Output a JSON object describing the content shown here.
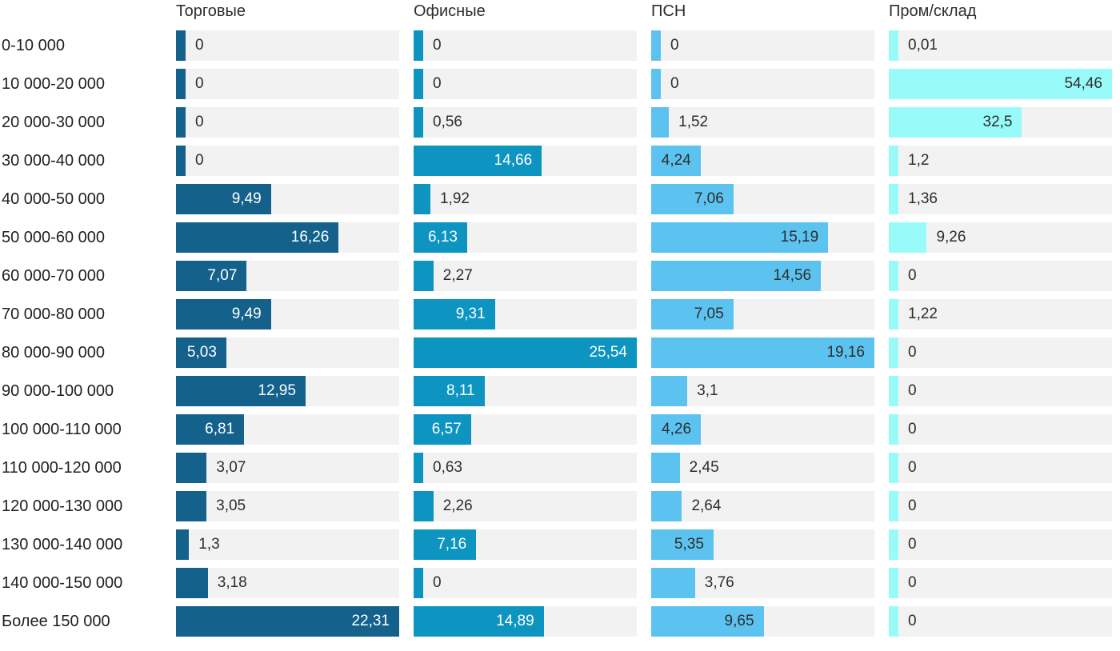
{
  "chart_data": {
    "type": "bar",
    "orientation": "horizontal",
    "layout": "small-multiples-4-columns",
    "scaling": "each-column-scaled-to-its-own-max",
    "grid": false,
    "track_color": "#f2f2f2",
    "background_color": "#ffffff",
    "outside_label_color": "#2d2d2d",
    "decimal_separator": ",",
    "categories": [
      "0-10 000",
      "10 000-20 000",
      "20 000-30 000",
      "30 000-40 000",
      "40 000-50 000",
      "50 000-60 000",
      "60 000-70 000",
      "70 000-80 000",
      "80 000-90 000",
      "90 000-100 000",
      "100 000-110 000",
      "110 000-120 000",
      "120 000-130 000",
      "130 000-140 000",
      "140 000-150 000",
      "Более 150 000"
    ],
    "series": [
      {
        "name": "Торговые",
        "color": "#14618c",
        "inside_label_color": "#ffffff",
        "values": [
          0,
          0,
          0,
          0,
          9.49,
          16.26,
          7.07,
          9.49,
          5.03,
          12.95,
          6.81,
          3.07,
          3.05,
          1.3,
          3.18,
          22.31
        ]
      },
      {
        "name": "Офисные",
        "color": "#0d94c1",
        "inside_label_color": "#ffffff",
        "values": [
          0,
          0,
          0.56,
          14.66,
          1.92,
          6.13,
          2.27,
          9.31,
          25.54,
          8.11,
          6.57,
          0.63,
          2.26,
          7.16,
          0,
          14.89
        ]
      },
      {
        "name": "ПСН",
        "color": "#5cc3f0",
        "inside_label_color": "#2d2d2d",
        "values": [
          0,
          0,
          1.52,
          4.24,
          7.06,
          15.19,
          14.56,
          7.05,
          19.16,
          3.1,
          4.26,
          2.45,
          2.64,
          5.35,
          3.76,
          9.65
        ]
      },
      {
        "name": "Пром/склад",
        "color": "#99fafa",
        "inside_label_color": "#2d2d2d",
        "values": [
          0.01,
          54.46,
          32.5,
          1.2,
          1.36,
          9.26,
          0,
          1.22,
          0,
          0,
          0,
          0,
          0,
          0,
          0,
          0
        ]
      }
    ]
  }
}
